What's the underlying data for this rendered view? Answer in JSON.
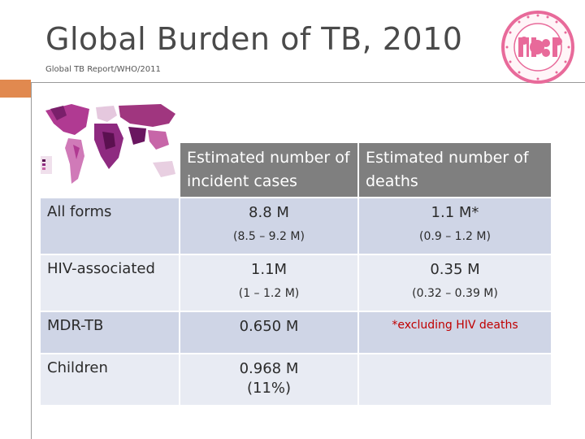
{
  "slide": {
    "title": "Global Burden of TB, 2010",
    "source": "Global TB Report/WHO/2011"
  },
  "colors": {
    "accent": "#e1894f",
    "header_bg": "#7f7f7f",
    "row_dark": "#cfd5e6",
    "row_light": "#e8ebf3",
    "note_red": "#c00000",
    "logo_pink": "#e86a9a"
  },
  "logo": {
    "icon": "pidsp-society-seal",
    "text": "PIDSP",
    "ring_text": "PEDIATRIC INFECTIOUS DISEASE SOCIETY OF THE PHILIPPINES"
  },
  "map": {
    "icon": "world-tb-incidence-map"
  },
  "table": {
    "headers": [
      "Estimated number of incident cases",
      "Estimated number of deaths"
    ],
    "rows": [
      {
        "label": "All forms",
        "cases": "8.8 M",
        "cases_range": "(8.5 – 9.2 M)",
        "deaths": "1.1 M*",
        "deaths_range": "(0.9 – 1.2 M)"
      },
      {
        "label": "HIV-associated",
        "cases": "1.1M",
        "cases_range": "(1 – 1.2 M)",
        "deaths": "0.35 M",
        "deaths_range": "(0.32 – 0.39 M)"
      },
      {
        "label": "MDR-TB",
        "cases": "0.650 M",
        "deaths_note": "*excluding HIV deaths"
      },
      {
        "label": "Children",
        "cases": "0.968 M",
        "cases_pct": "(11%)"
      }
    ]
  }
}
